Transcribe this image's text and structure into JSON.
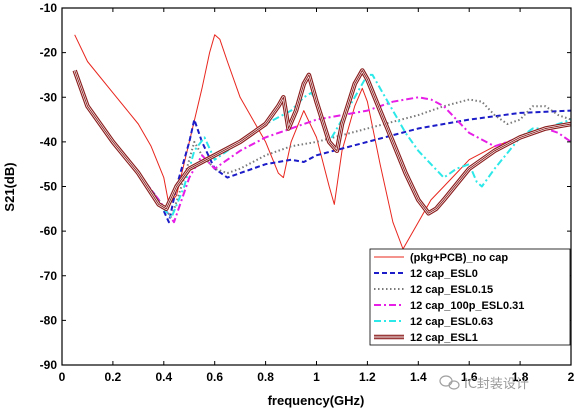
{
  "chart_data": {
    "type": "line",
    "xlabel": "frequency(GHz)",
    "ylabel": "S21(dB)",
    "xlim": [
      0,
      2
    ],
    "ylim": [
      -90,
      -10
    ],
    "xticks": [
      0,
      0.2,
      0.4,
      0.6,
      0.8,
      1,
      1.2,
      1.4,
      1.6,
      1.8,
      2
    ],
    "xtick_labels": [
      "0",
      "0.2",
      "0.4",
      "0.6",
      "0.8",
      "1",
      "1.2",
      "1.4",
      "1.6",
      "1.8",
      "2"
    ],
    "yticks": [
      -90,
      -80,
      -70,
      -60,
      -50,
      -40,
      -30,
      -20,
      -10
    ],
    "ytick_labels": [
      "-90",
      "-80",
      "-70",
      "-60",
      "-50",
      "-40",
      "-30",
      "-20",
      "-10"
    ],
    "grid": false,
    "legend_position": "bottom-right",
    "series": [
      {
        "name": "(pkg+PCB)_no cap",
        "color": "#e8261e",
        "style": "solid",
        "points": [
          [
            0.05,
            -16
          ],
          [
            0.1,
            -22
          ],
          [
            0.2,
            -29
          ],
          [
            0.3,
            -36
          ],
          [
            0.35,
            -41
          ],
          [
            0.4,
            -48
          ],
          [
            0.42,
            -54
          ],
          [
            0.45,
            -52
          ],
          [
            0.5,
            -40
          ],
          [
            0.55,
            -28
          ],
          [
            0.58,
            -20
          ],
          [
            0.6,
            -16
          ],
          [
            0.62,
            -17
          ],
          [
            0.65,
            -22
          ],
          [
            0.7,
            -30
          ],
          [
            0.8,
            -40
          ],
          [
            0.85,
            -47
          ],
          [
            0.87,
            -48
          ],
          [
            0.9,
            -40
          ],
          [
            0.95,
            -33
          ],
          [
            1.0,
            -39
          ],
          [
            1.05,
            -50
          ],
          [
            1.07,
            -54
          ],
          [
            1.1,
            -42
          ],
          [
            1.15,
            -32
          ],
          [
            1.18,
            -28
          ],
          [
            1.2,
            -31
          ],
          [
            1.25,
            -45
          ],
          [
            1.3,
            -58
          ],
          [
            1.34,
            -64
          ],
          [
            1.4,
            -58
          ],
          [
            1.45,
            -53
          ],
          [
            1.5,
            -50
          ],
          [
            1.55,
            -47
          ],
          [
            1.6,
            -44
          ],
          [
            1.7,
            -41
          ],
          [
            1.8,
            -39
          ],
          [
            1.9,
            -37
          ],
          [
            2.0,
            -36
          ]
        ]
      },
      {
        "name": "12 cap_ESL0",
        "color": "#1c1cc8",
        "style": "dashed",
        "points": [
          [
            0.05,
            -24
          ],
          [
            0.1,
            -32
          ],
          [
            0.2,
            -40
          ],
          [
            0.3,
            -47
          ],
          [
            0.38,
            -53
          ],
          [
            0.42,
            -58
          ],
          [
            0.45,
            -50
          ],
          [
            0.5,
            -40
          ],
          [
            0.52,
            -35
          ],
          [
            0.55,
            -40
          ],
          [
            0.6,
            -46
          ],
          [
            0.65,
            -48
          ],
          [
            0.7,
            -47
          ],
          [
            0.8,
            -45
          ],
          [
            0.9,
            -44
          ],
          [
            0.95,
            -44.5
          ],
          [
            1.0,
            -43
          ],
          [
            1.2,
            -40
          ],
          [
            1.4,
            -37
          ],
          [
            1.6,
            -35
          ],
          [
            1.8,
            -33.5
          ],
          [
            2.0,
            -33
          ]
        ]
      },
      {
        "name": "12 cap_ESL0.15",
        "color": "#7a7a7a",
        "style": "dotted",
        "points": [
          [
            0.05,
            -24
          ],
          [
            0.1,
            -32
          ],
          [
            0.2,
            -40
          ],
          [
            0.3,
            -47
          ],
          [
            0.38,
            -53
          ],
          [
            0.43,
            -57
          ],
          [
            0.48,
            -48
          ],
          [
            0.52,
            -40
          ],
          [
            0.55,
            -43
          ],
          [
            0.6,
            -46
          ],
          [
            0.65,
            -47
          ],
          [
            0.7,
            -46
          ],
          [
            0.8,
            -43
          ],
          [
            0.9,
            -41
          ],
          [
            1.0,
            -40
          ],
          [
            1.2,
            -37
          ],
          [
            1.4,
            -34
          ],
          [
            1.5,
            -32
          ],
          [
            1.6,
            -30.5
          ],
          [
            1.65,
            -31
          ],
          [
            1.7,
            -34
          ],
          [
            1.75,
            -36
          ],
          [
            1.8,
            -35
          ],
          [
            1.85,
            -32
          ],
          [
            1.9,
            -32
          ],
          [
            1.95,
            -34
          ],
          [
            2.0,
            -35
          ]
        ]
      },
      {
        "name": "12 cap_100p_ESL0.31",
        "color": "#e61ee6",
        "style": "dashdot",
        "points": [
          [
            0.05,
            -24
          ],
          [
            0.1,
            -32
          ],
          [
            0.2,
            -40
          ],
          [
            0.3,
            -47
          ],
          [
            0.38,
            -53
          ],
          [
            0.44,
            -58
          ],
          [
            0.5,
            -48
          ],
          [
            0.55,
            -43
          ],
          [
            0.6,
            -46
          ],
          [
            0.65,
            -44
          ],
          [
            0.7,
            -42
          ],
          [
            0.8,
            -39
          ],
          [
            0.9,
            -37
          ],
          [
            1.0,
            -35
          ],
          [
            1.1,
            -34
          ],
          [
            1.2,
            -33
          ],
          [
            1.3,
            -31
          ],
          [
            1.4,
            -30
          ],
          [
            1.45,
            -30.5
          ],
          [
            1.5,
            -32
          ],
          [
            1.55,
            -35
          ],
          [
            1.6,
            -38
          ],
          [
            1.7,
            -41
          ],
          [
            1.8,
            -39
          ],
          [
            1.9,
            -37
          ],
          [
            1.95,
            -38
          ],
          [
            2.0,
            -40
          ]
        ]
      },
      {
        "name": "12 cap_ESL0.63",
        "color": "#2ce8e8",
        "style": "dashdot",
        "points": [
          [
            0.05,
            -24
          ],
          [
            0.1,
            -32
          ],
          [
            0.2,
            -40
          ],
          [
            0.3,
            -47
          ],
          [
            0.4,
            -55
          ],
          [
            0.43,
            -57
          ],
          [
            0.48,
            -50
          ],
          [
            0.52,
            -42
          ],
          [
            0.56,
            -39
          ],
          [
            0.6,
            -44
          ],
          [
            0.65,
            -42
          ],
          [
            0.7,
            -40
          ],
          [
            0.8,
            -36
          ],
          [
            0.9,
            -33
          ],
          [
            0.95,
            -30
          ],
          [
            0.98,
            -29
          ],
          [
            1.0,
            -31
          ],
          [
            1.03,
            -37
          ],
          [
            1.05,
            -40
          ],
          [
            1.1,
            -35
          ],
          [
            1.15,
            -30
          ],
          [
            1.2,
            -25
          ],
          [
            1.22,
            -25
          ],
          [
            1.25,
            -28
          ],
          [
            1.3,
            -33
          ],
          [
            1.35,
            -38
          ],
          [
            1.4,
            -42
          ],
          [
            1.45,
            -45
          ],
          [
            1.5,
            -48
          ],
          [
            1.55,
            -46
          ],
          [
            1.6,
            -45
          ],
          [
            1.63,
            -49
          ],
          [
            1.65,
            -50
          ],
          [
            1.7,
            -46
          ],
          [
            1.8,
            -39
          ],
          [
            1.85,
            -37
          ],
          [
            1.9,
            -37
          ],
          [
            1.95,
            -36
          ],
          [
            2.0,
            -35
          ]
        ]
      },
      {
        "name": "12 cap_ESL1",
        "color": "#8b1e1e",
        "style": "triple",
        "points": [
          [
            0.05,
            -24
          ],
          [
            0.1,
            -32
          ],
          [
            0.2,
            -40
          ],
          [
            0.3,
            -47
          ],
          [
            0.38,
            -54
          ],
          [
            0.41,
            -55
          ],
          [
            0.45,
            -50
          ],
          [
            0.5,
            -46
          ],
          [
            0.6,
            -43
          ],
          [
            0.7,
            -40
          ],
          [
            0.8,
            -36
          ],
          [
            0.85,
            -32
          ],
          [
            0.87,
            -30
          ],
          [
            0.89,
            -37
          ],
          [
            0.92,
            -33
          ],
          [
            0.95,
            -27
          ],
          [
            0.97,
            -25
          ],
          [
            1.0,
            -31
          ],
          [
            1.05,
            -40
          ],
          [
            1.08,
            -42
          ],
          [
            1.1,
            -36
          ],
          [
            1.15,
            -27
          ],
          [
            1.18,
            -24
          ],
          [
            1.2,
            -26
          ],
          [
            1.25,
            -33
          ],
          [
            1.3,
            -40
          ],
          [
            1.35,
            -47
          ],
          [
            1.4,
            -53
          ],
          [
            1.44,
            -56
          ],
          [
            1.47,
            -55
          ],
          [
            1.5,
            -53
          ],
          [
            1.6,
            -46
          ],
          [
            1.7,
            -42
          ],
          [
            1.8,
            -39
          ],
          [
            1.9,
            -37
          ],
          [
            2.0,
            -36
          ]
        ]
      }
    ]
  },
  "watermark": {
    "text": "IC封装设计",
    "icon": "wechat-icon"
  }
}
